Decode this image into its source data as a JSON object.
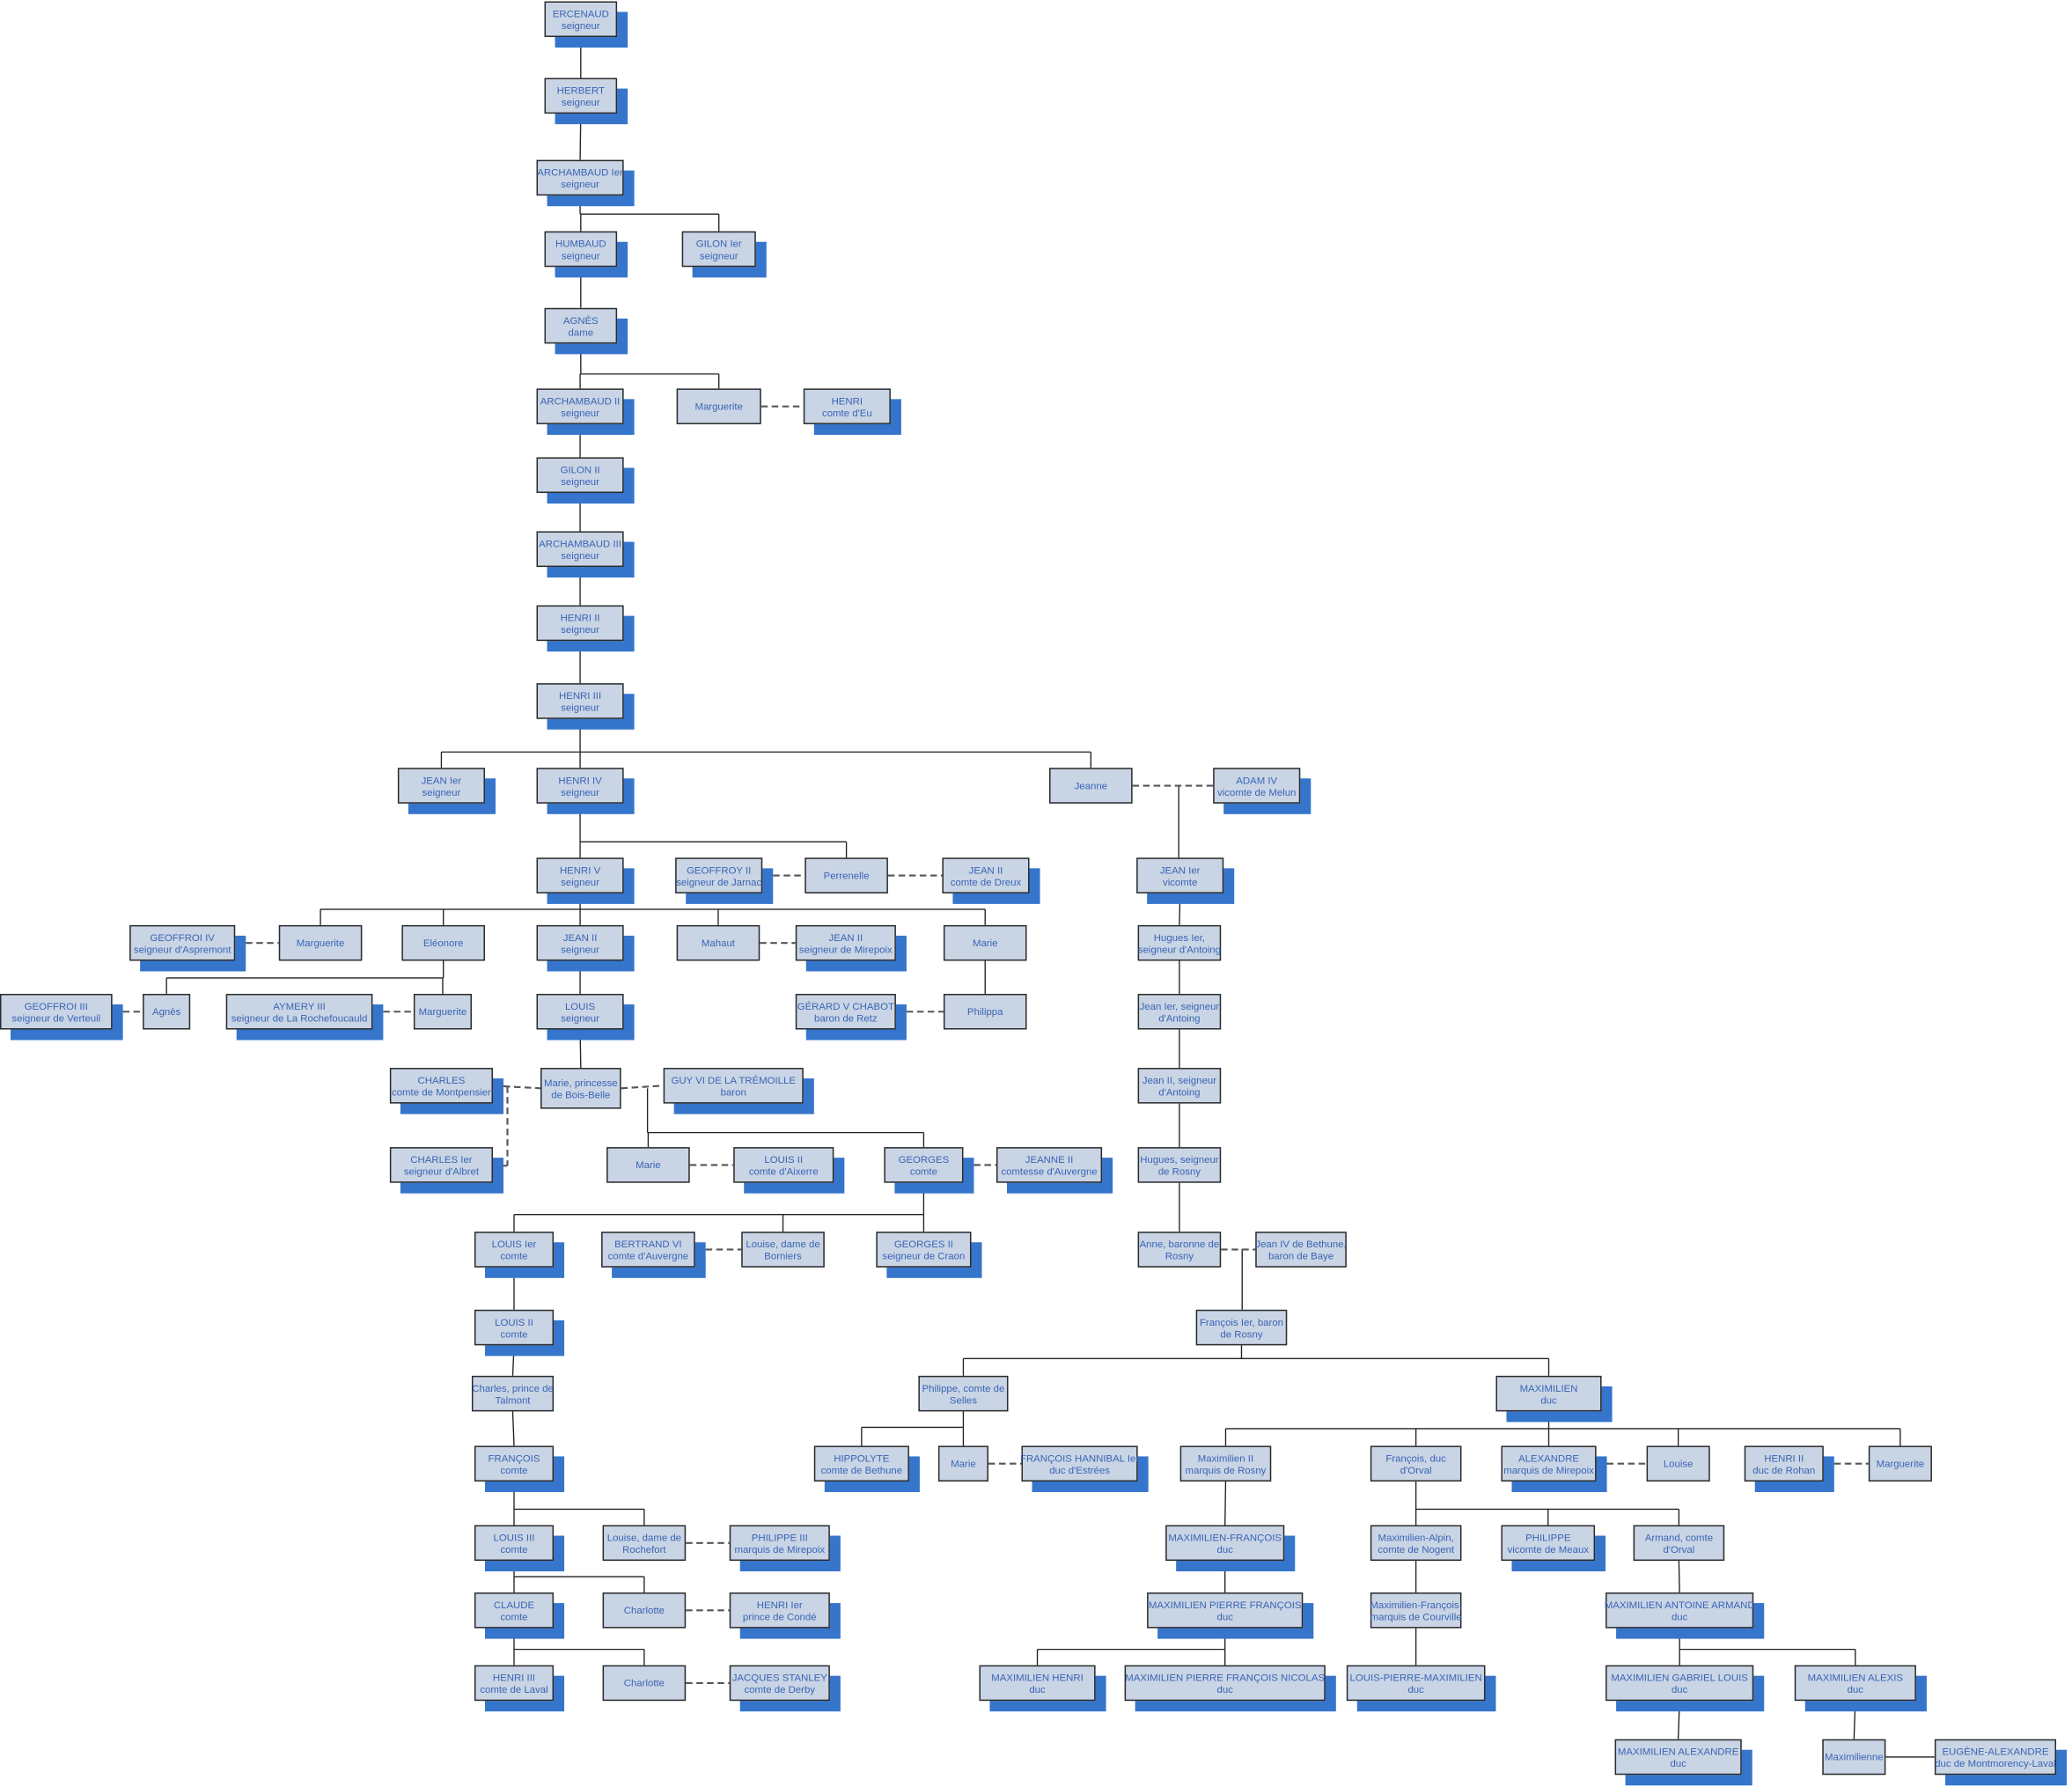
{
  "colors": {
    "box_fill": "#c9d5e5",
    "box_border": "#2b2b2b",
    "text": "#3a64b4",
    "shadow": "#3575cc",
    "line": "#222222"
  },
  "nodes": [
    {
      "name": "ERCENAUD",
      "title": "seigneur"
    },
    {
      "name": "HERBERT",
      "title": "seigneur"
    },
    {
      "name": "ARCHAMBAUD Ier",
      "title": "seigneur"
    },
    {
      "name": "HUMBAUD",
      "title": "seigneur"
    },
    {
      "name": "GILON Ier",
      "title": "seigneur"
    },
    {
      "name": "AGNÈS",
      "title": "dame"
    },
    {
      "name": "ARCHAMBAUD II",
      "title": "seigneur"
    },
    {
      "name": "Marguerite",
      "title": ""
    },
    {
      "name": "HENRI",
      "title": "comte d'Eu"
    },
    {
      "name": "GILON II",
      "title": "seigneur"
    },
    {
      "name": "ARCHAMBAUD III",
      "title": "seigneur"
    },
    {
      "name": "HENRI II",
      "title": "seigneur"
    },
    {
      "name": "HENRI III",
      "title": "seigneur"
    },
    {
      "name": "JEAN Ier",
      "title": "seigneur"
    },
    {
      "name": "HENRI IV",
      "title": "seigneur"
    },
    {
      "name": "Jeanne",
      "title": ""
    },
    {
      "name": "ADAM IV",
      "title": "vicomte de Melun"
    },
    {
      "name": "HENRI V",
      "title": "seigneur"
    },
    {
      "name": "GEOFFROY II",
      "title": "seigneur de Jarnac"
    },
    {
      "name": "Perrenelle",
      "title": ""
    },
    {
      "name": "JEAN II",
      "title": "comte de Dreux"
    },
    {
      "name": "JEAN Ier",
      "title": "vicomte"
    },
    {
      "name": "GEOFFROI IV",
      "title": "seigneur d'Aspremont"
    },
    {
      "name": "Marguerite",
      "title": ""
    },
    {
      "name": "Eléonore",
      "title": ""
    },
    {
      "name": "JEAN II",
      "title": "seigneur"
    },
    {
      "name": "Mahaut",
      "title": ""
    },
    {
      "name": "JEAN II",
      "title": "seigneur de Mirepoix"
    },
    {
      "name": "Marie",
      "title": ""
    },
    {
      "name": "Hugues Ier,",
      "title": "seigneur d'Antoing"
    },
    {
      "name": "GEOFFROI III",
      "title": "seigneur de Verteuil"
    },
    {
      "name": "Agnès",
      "title": ""
    },
    {
      "name": "AYMERY III",
      "title": "seigneur de La Rochefoucauld"
    },
    {
      "name": "Marguerite",
      "title": ""
    },
    {
      "name": "LOUIS",
      "title": "seigneur"
    },
    {
      "name": "GÉRARD V CHABOT",
      "title": "baron de Retz"
    },
    {
      "name": "Philippa",
      "title": ""
    },
    {
      "name": "Jean Ier, seigneur",
      "title": "d'Antoing"
    },
    {
      "name": "CHARLES",
      "title": "comte de Montpensier"
    },
    {
      "name": "Marie, princesse",
      "title": "de Bois-Belle"
    },
    {
      "name": "GUY VI DE LA TRÉMOILLE",
      "title": "baron"
    },
    {
      "name": "Jean II, seigneur",
      "title": "d'Antoing"
    },
    {
      "name": "CHARLES Ier",
      "title": "seigneur d'Albret"
    },
    {
      "name": "Marie",
      "title": ""
    },
    {
      "name": "LOUIS II",
      "title": "comte d'Aixerre"
    },
    {
      "name": "GEORGES",
      "title": "comte"
    },
    {
      "name": "JEANNE II",
      "title": "comtesse d'Auvergne"
    },
    {
      "name": "Hugues, seigneur",
      "title": "de Rosny"
    },
    {
      "name": "LOUIS Ier",
      "title": "comte"
    },
    {
      "name": "BERTRAND VI",
      "title": "comte d'Auvergne"
    },
    {
      "name": "Louise, dame de",
      "title": "Borniers"
    },
    {
      "name": "GEORGES II",
      "title": "seigneur de Craon"
    },
    {
      "name": "Anne, baronne de",
      "title": "Rosny"
    },
    {
      "name": "Jean IV de Bethune,",
      "title": "baron de Baye"
    },
    {
      "name": "LOUIS II",
      "title": "comte"
    },
    {
      "name": "François Ier, baron",
      "title": "de Rosny"
    },
    {
      "name": "Charles, prince de",
      "title": "Talmont"
    },
    {
      "name": "Philippe, comte de",
      "title": "Selles"
    },
    {
      "name": "MAXIMILIEN",
      "title": "duc"
    },
    {
      "name": "FRANÇOIS",
      "title": "comte"
    },
    {
      "name": "HIPPOLYTE",
      "title": "comte de Bethune"
    },
    {
      "name": "Marie",
      "title": ""
    },
    {
      "name": "FRANÇOIS HANNIBAL Ier",
      "title": "duc d'Estrées"
    },
    {
      "name": "Maximilien II",
      "title": "marquis de Rosny"
    },
    {
      "name": "François, duc",
      "title": "d'Orval"
    },
    {
      "name": "ALEXANDRE",
      "title": "marquis de Mirepoix"
    },
    {
      "name": "Louise",
      "title": ""
    },
    {
      "name": "HENRI II",
      "title": "duc de Rohan"
    },
    {
      "name": "Marguerite",
      "title": ""
    },
    {
      "name": "LOUIS III",
      "title": "comte"
    },
    {
      "name": "Louise, dame de",
      "title": "Rochefort"
    },
    {
      "name": "PHILIPPE III",
      "title": "marquis de Mirepoix"
    },
    {
      "name": "MAXIMILIEN-FRANÇOIS",
      "title": "duc"
    },
    {
      "name": "Maximilien-Alpin,",
      "title": "comte de Nogent"
    },
    {
      "name": "PHILIPPE",
      "title": "vicomte de Meaux"
    },
    {
      "name": "Armand, comte",
      "title": "d'Orval"
    },
    {
      "name": "CLAUDE",
      "title": "comte"
    },
    {
      "name": "Charlotte",
      "title": ""
    },
    {
      "name": "HENRI Ier",
      "title": "prince de Condé"
    },
    {
      "name": "MAXIMILIEN PIERRE FRANÇOIS",
      "title": "duc"
    },
    {
      "name": "Maximilien-François,",
      "title": "marquis de Courville"
    },
    {
      "name": "MAXIMILIEN ANTOINE ARMAND",
      "title": "duc"
    },
    {
      "name": "HENRI III",
      "title": "comte de Laval"
    },
    {
      "name": "Charlotte",
      "title": ""
    },
    {
      "name": "JACQUES STANLEY",
      "title": "comte de Derby"
    },
    {
      "name": "MAXIMILIEN HENRI",
      "title": "duc"
    },
    {
      "name": "MAXIMILIEN PIERRE FRANÇOIS NICOLAS",
      "title": "duc"
    },
    {
      "name": "LOUIS-PIERRE-MAXIMILIEN",
      "title": "duc"
    },
    {
      "name": "MAXIMILIEN GABRIEL LOUIS",
      "title": "duc"
    },
    {
      "name": "MAXIMILIEN ALEXIS",
      "title": "duc"
    },
    {
      "name": "MAXIMILIEN ALEXANDRE",
      "title": "duc"
    },
    {
      "name": "Maximilienne",
      "title": ""
    },
    {
      "name": "EUGÈNE-ALEXANDRE",
      "title": "duc de Montmorency-Laval"
    }
  ]
}
